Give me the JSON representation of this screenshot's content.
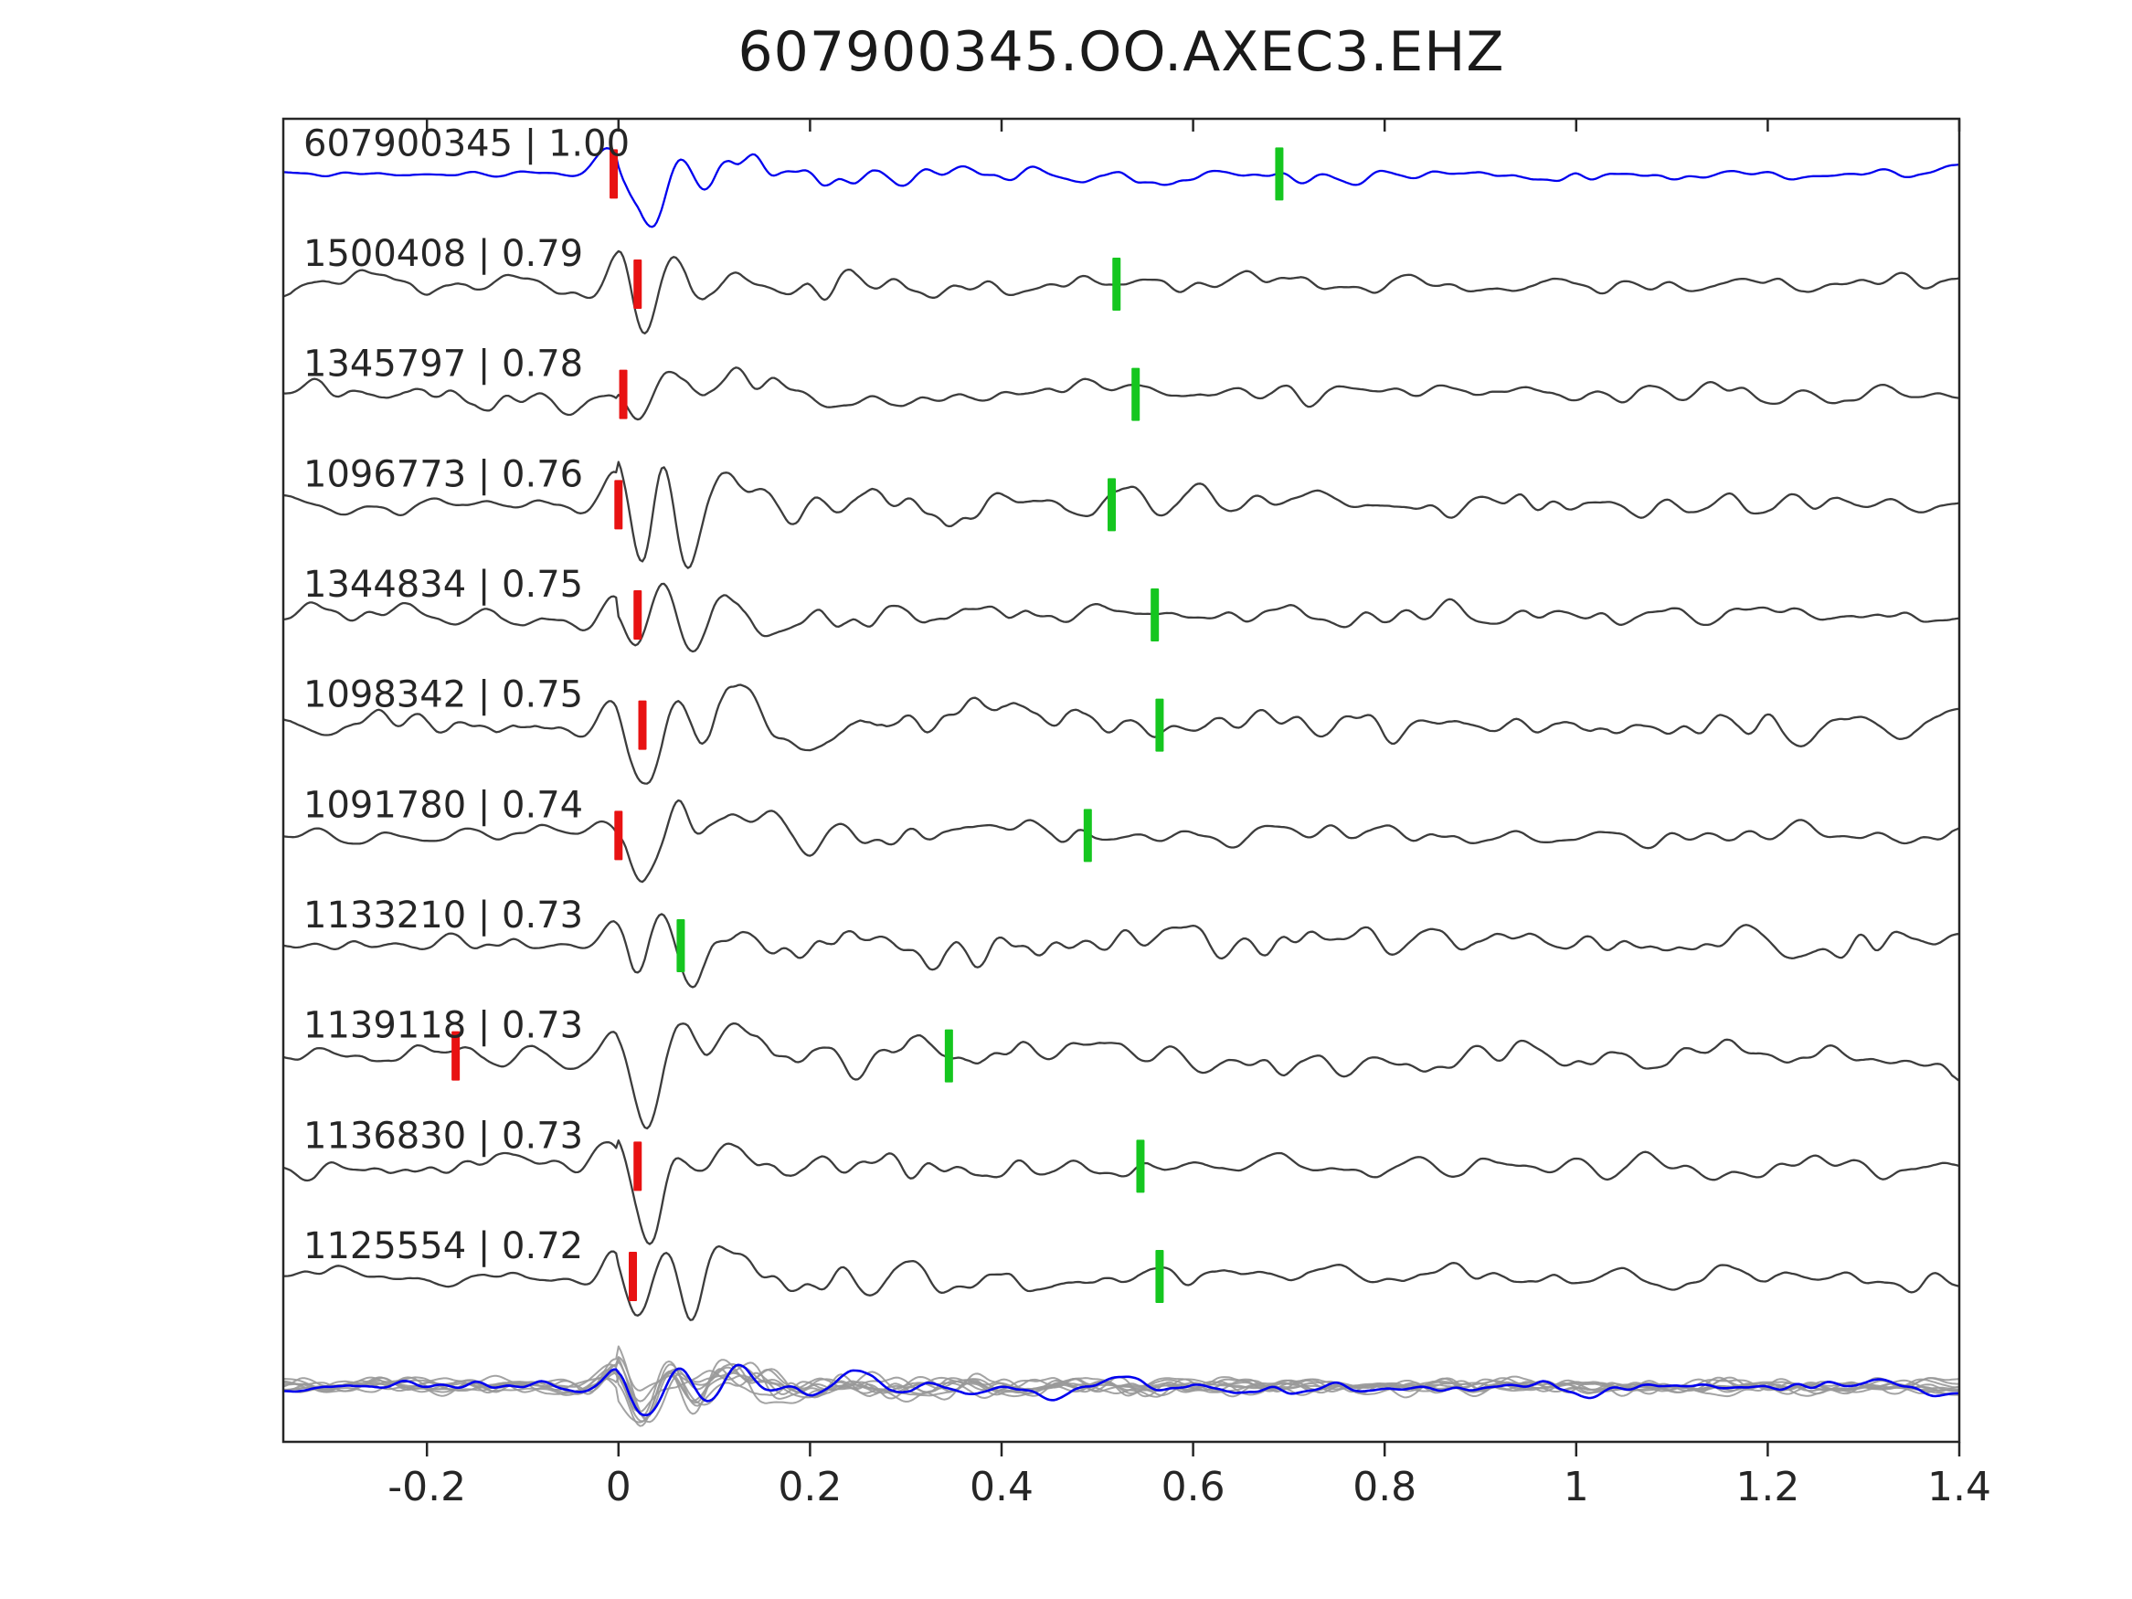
{
  "title": "607900345.OO.AXEC3.EHZ",
  "colors": {
    "template_trace": "#0000ee",
    "detection_trace": "#3c3c3c",
    "stack_member": "#999999",
    "pick_marker_red": "#e81212",
    "detection_marker_green": "#15c61f",
    "axis": "#262626",
    "background": "#ffffff"
  },
  "chart_data": {
    "type": "line",
    "title": "607900345.OO.AXEC3.EHZ",
    "xlabel": "",
    "ylabel": "",
    "x_axis": {
      "min": -0.35,
      "max": 1.4,
      "ticks": [
        -0.2,
        0,
        0.2,
        0.4,
        0.6,
        0.8,
        1,
        1.2,
        1.4
      ],
      "tick_labels": [
        "-0.2",
        "0",
        "0.2",
        "0.4",
        "0.6",
        "0.8",
        "1",
        "1.2",
        "1.4"
      ]
    },
    "legend": "none",
    "grid": false,
    "description": "Template waveform (blue, top) compared against 10 detected event waveforms (dark grey) on channel OO.AXEC3.EHZ; red bars mark pick times near t=0, green bars mark secondary marker times; bottom row shows all traces stacked (grey) with template overlay (blue).",
    "traces": [
      {
        "id": "607900345",
        "correlation": "1.00",
        "label": "607900345 | 1.00",
        "kind": "template",
        "red_time": -0.005,
        "green_time": 0.69,
        "style": {
          "seed": 11,
          "pre": 4,
          "burst": 55,
          "ring": 16,
          "coda": 6,
          "decay": 0.3
        }
      },
      {
        "id": "1500408",
        "correlation": "0.79",
        "label": "1500408 | 0.79",
        "kind": "detection",
        "red_time": 0.02,
        "green_time": 0.52,
        "style": {
          "seed": 23,
          "pre": 11,
          "burst": 46,
          "ring": 18,
          "coda": 9,
          "decay": 0.25
        }
      },
      {
        "id": "1345797",
        "correlation": "0.78",
        "label": "1345797 | 0.78",
        "kind": "detection",
        "red_time": 0.005,
        "green_time": 0.54,
        "style": {
          "seed": 37,
          "pre": 17,
          "burst": 44,
          "ring": 16,
          "coda": 10,
          "decay": 0.25
        }
      },
      {
        "id": "1096773",
        "correlation": "0.76",
        "label": "1096773 | 0.76",
        "kind": "detection",
        "red_time": 0.0,
        "green_time": 0.515,
        "style": {
          "seed": 41,
          "pre": 10,
          "burst": 50,
          "ring": 20,
          "coda": 12,
          "decay": 0.3
        }
      },
      {
        "id": "1344834",
        "correlation": "0.75",
        "label": "1344834 | 0.75",
        "kind": "detection",
        "red_time": 0.02,
        "green_time": 0.56,
        "style": {
          "seed": 53,
          "pre": 10,
          "burst": 46,
          "ring": 18,
          "coda": 10,
          "decay": 0.25
        }
      },
      {
        "id": "1098342",
        "correlation": "0.75",
        "label": "1098342 | 0.75",
        "kind": "detection",
        "red_time": 0.025,
        "green_time": 0.565,
        "style": {
          "seed": 67,
          "pre": 14,
          "burst": 42,
          "ring": 20,
          "coda": 14,
          "decay": 0.35
        }
      },
      {
        "id": "1091780",
        "correlation": "0.74",
        "label": "1091780 | 0.74",
        "kind": "detection",
        "red_time": 0.0,
        "green_time": 0.49,
        "style": {
          "seed": 71,
          "pre": 9,
          "burst": 46,
          "ring": 18,
          "coda": 10,
          "decay": 0.25
        }
      },
      {
        "id": "1133210",
        "correlation": "0.73",
        "label": "1133210 | 0.73",
        "kind": "detection",
        "red_time": null,
        "green_time": 0.065,
        "style": {
          "seed": 83,
          "pre": 10,
          "burst": 50,
          "ring": 22,
          "coda": 13,
          "decay": 0.35
        }
      },
      {
        "id": "1139118",
        "correlation": "0.73",
        "label": "1139118 | 0.73",
        "kind": "detection",
        "red_time": -0.17,
        "green_time": 0.345,
        "style": {
          "seed": 97,
          "pre": 16,
          "burst": 46,
          "ring": 20,
          "coda": 14,
          "decay": 0.35
        }
      },
      {
        "id": "1136830",
        "correlation": "0.73",
        "label": "1136830 | 0.73",
        "kind": "detection",
        "red_time": 0.02,
        "green_time": 0.545,
        "style": {
          "seed": 103,
          "pre": 12,
          "burst": 46,
          "ring": 18,
          "coda": 11,
          "decay": 0.3
        }
      },
      {
        "id": "1125554",
        "correlation": "0.72",
        "label": "1125554 | 0.72",
        "kind": "detection",
        "red_time": 0.015,
        "green_time": 0.565,
        "style": {
          "seed": 113,
          "pre": 9,
          "burst": 45,
          "ring": 18,
          "coda": 11,
          "decay": 0.3
        }
      }
    ],
    "stack_row": {
      "member_count": 9,
      "member_style": {
        "seed": 201,
        "pre": 7,
        "burst": 30,
        "ring": 12,
        "coda": 7,
        "decay": 0.3
      },
      "overlay_style": {
        "seed": 210,
        "pre": 7,
        "burst": 32,
        "ring": 12,
        "coda": 7,
        "decay": 0.3
      }
    }
  }
}
